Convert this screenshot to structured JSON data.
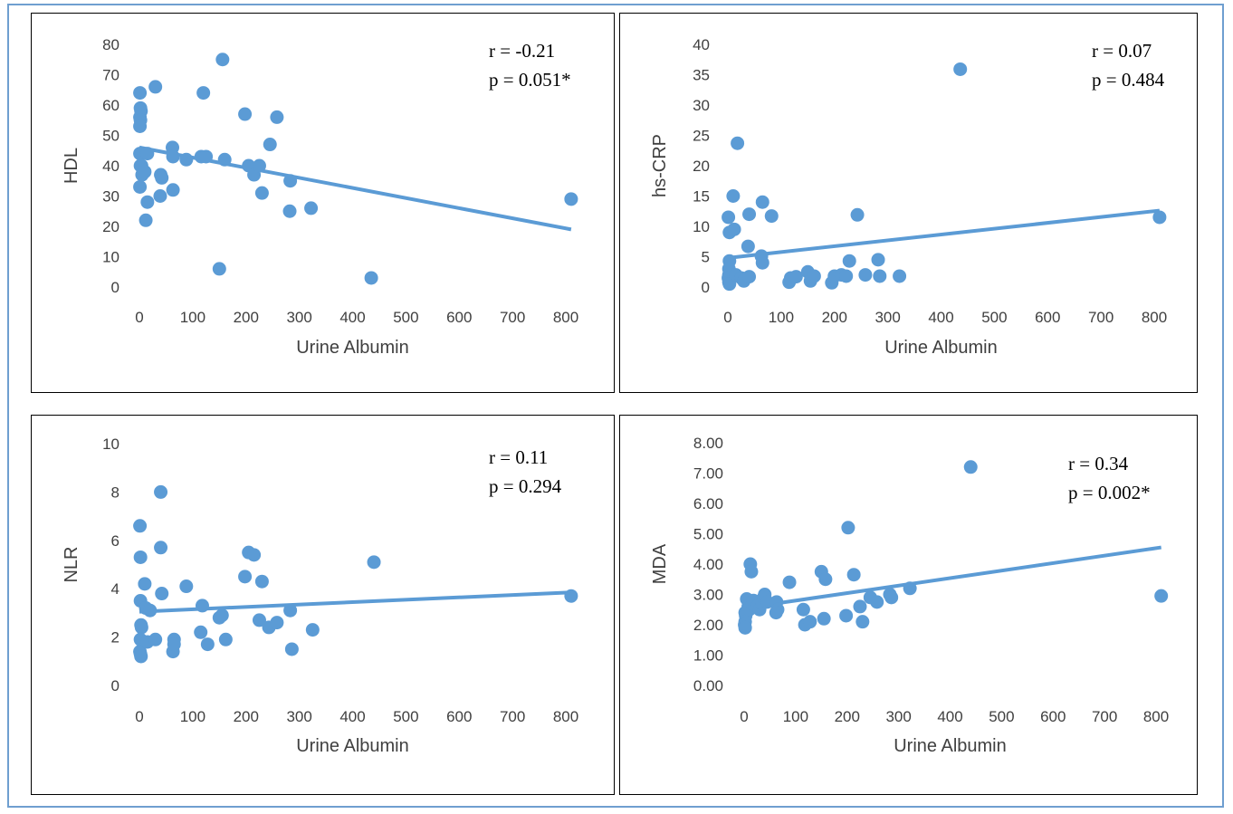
{
  "colors": {
    "point": "#5b9bd5",
    "trend": "#5b9bd5",
    "border": "#6f9fd0",
    "axis_text": "#404040"
  },
  "panels": [
    {
      "r_label": "r = -0.21",
      "p_label": "p = 0.051*"
    },
    {
      "r_label": "r = 0.07",
      "p_label": "p = 0.484"
    },
    {
      "r_label": "r = 0.11",
      "p_label": "p = 0.294"
    },
    {
      "r_label": "r = 0.34",
      "p_label": "p = 0.002*"
    }
  ],
  "chart_data": [
    {
      "type": "scatter",
      "xlabel": "Urine Albumin",
      "ylabel": "HDL",
      "xlim": [
        0,
        800
      ],
      "ylim": [
        0,
        80
      ],
      "xticks": [
        0,
        100,
        200,
        300,
        400,
        500,
        600,
        700,
        800
      ],
      "yticks": [
        0,
        10,
        20,
        30,
        40,
        50,
        60,
        70,
        80
      ],
      "ytick_labels": [
        "0",
        "10",
        "20",
        "30",
        "40",
        "50",
        "60",
        "70",
        "80"
      ],
      "trendline": {
        "x": [
          0,
          810
        ],
        "y": [
          46,
          19
        ]
      },
      "points": [
        [
          1,
          64
        ],
        [
          2,
          59
        ],
        [
          3,
          58
        ],
        [
          1,
          56
        ],
        [
          2,
          55
        ],
        [
          1,
          53
        ],
        [
          1,
          44
        ],
        [
          3,
          44
        ],
        [
          15,
          44
        ],
        [
          62,
          46
        ],
        [
          63,
          43
        ],
        [
          2,
          40
        ],
        [
          4,
          40
        ],
        [
          5,
          37
        ],
        [
          10,
          38
        ],
        [
          40,
          37
        ],
        [
          42,
          36
        ],
        [
          1,
          33
        ],
        [
          15,
          28
        ],
        [
          39,
          30
        ],
        [
          63,
          32
        ],
        [
          12,
          22
        ],
        [
          30,
          66
        ],
        [
          88,
          42
        ],
        [
          116,
          43
        ],
        [
          125,
          43
        ],
        [
          120,
          64
        ],
        [
          156,
          75
        ],
        [
          160,
          42
        ],
        [
          198,
          57
        ],
        [
          205,
          40
        ],
        [
          215,
          37
        ],
        [
          225,
          40
        ],
        [
          245,
          47
        ],
        [
          258,
          56
        ],
        [
          230,
          31
        ],
        [
          283,
          35
        ],
        [
          282,
          25
        ],
        [
          322,
          26
        ],
        [
          150,
          6
        ],
        [
          435,
          3
        ],
        [
          810,
          29
        ]
      ]
    },
    {
      "type": "scatter",
      "xlabel": "Urine Albumin",
      "ylabel": "hs-CRP",
      "xlim": [
        0,
        800
      ],
      "ylim": [
        0,
        40
      ],
      "xticks": [
        0,
        100,
        200,
        300,
        400,
        500,
        600,
        700,
        800
      ],
      "yticks": [
        0,
        5,
        10,
        15,
        20,
        25,
        30,
        35,
        40
      ],
      "ytick_labels": [
        "0",
        "5",
        "10",
        "15",
        "20",
        "25",
        "30",
        "35",
        "40"
      ],
      "trendline": {
        "x": [
          0,
          810
        ],
        "y": [
          4.8,
          12.6
        ]
      },
      "points": [
        [
          1,
          11.5
        ],
        [
          3,
          9
        ],
        [
          12,
          9.5
        ],
        [
          10,
          15
        ],
        [
          18,
          23.7
        ],
        [
          3,
          4.3
        ],
        [
          2,
          3
        ],
        [
          2,
          2
        ],
        [
          1,
          1.5
        ],
        [
          2,
          0.8
        ],
        [
          3,
          0.5
        ],
        [
          15,
          2
        ],
        [
          25,
          1.5
        ],
        [
          30,
          1
        ],
        [
          40,
          1.7
        ],
        [
          38,
          6.7
        ],
        [
          40,
          12
        ],
        [
          65,
          14
        ],
        [
          82,
          11.7
        ],
        [
          63,
          5.1
        ],
        [
          65,
          4
        ],
        [
          118,
          1.5
        ],
        [
          115,
          0.8
        ],
        [
          128,
          1.7
        ],
        [
          150,
          2.5
        ],
        [
          155,
          1
        ],
        [
          162,
          1.8
        ],
        [
          195,
          0.7
        ],
        [
          200,
          1.8
        ],
        [
          213,
          2
        ],
        [
          222,
          1.8
        ],
        [
          228,
          4.3
        ],
        [
          243,
          11.9
        ],
        [
          258,
          2
        ],
        [
          282,
          4.5
        ],
        [
          285,
          1.8
        ],
        [
          322,
          1.8
        ],
        [
          436,
          35.9
        ],
        [
          810,
          11.5
        ]
      ]
    },
    {
      "type": "scatter",
      "xlabel": "Urine Albumin",
      "ylabel": "NLR",
      "xlim": [
        0,
        800
      ],
      "ylim": [
        0,
        10
      ],
      "xticks": [
        0,
        100,
        200,
        300,
        400,
        500,
        600,
        700,
        800
      ],
      "yticks": [
        0,
        2,
        4,
        6,
        8,
        10
      ],
      "ytick_labels": [
        "0",
        "2",
        "4",
        "6",
        "8",
        "10"
      ],
      "trendline": {
        "x": [
          0,
          810
        ],
        "y": [
          3.05,
          3.85
        ]
      },
      "points": [
        [
          1,
          6.6
        ],
        [
          2,
          5.3
        ],
        [
          2,
          3.5
        ],
        [
          3,
          2.5
        ],
        [
          4,
          2.4
        ],
        [
          2,
          1.9
        ],
        [
          1,
          1.4
        ],
        [
          2,
          1.3
        ],
        [
          3,
          1.2
        ],
        [
          10,
          4.2
        ],
        [
          12,
          3.2
        ],
        [
          20,
          3.1
        ],
        [
          15,
          1.8
        ],
        [
          30,
          1.9
        ],
        [
          40,
          8
        ],
        [
          40,
          5.7
        ],
        [
          42,
          3.8
        ],
        [
          63,
          1.4
        ],
        [
          65,
          1.9
        ],
        [
          65,
          1.7
        ],
        [
          88,
          4.1
        ],
        [
          118,
          3.3
        ],
        [
          115,
          2.2
        ],
        [
          128,
          1.7
        ],
        [
          150,
          2.8
        ],
        [
          155,
          2.9
        ],
        [
          162,
          1.9
        ],
        [
          198,
          4.5
        ],
        [
          205,
          5.5
        ],
        [
          215,
          5.4
        ],
        [
          225,
          2.7
        ],
        [
          230,
          4.3
        ],
        [
          243,
          2.4
        ],
        [
          258,
          2.6
        ],
        [
          283,
          3.1
        ],
        [
          286,
          1.5
        ],
        [
          325,
          2.3
        ],
        [
          440,
          5.1
        ],
        [
          810,
          3.7
        ]
      ]
    },
    {
      "type": "scatter",
      "xlabel": "Urine Albumin",
      "ylabel": "MDA",
      "xlim": [
        0,
        800
      ],
      "ylim": [
        0,
        8
      ],
      "xticks": [
        0,
        100,
        200,
        300,
        400,
        500,
        600,
        700,
        800
      ],
      "yticks": [
        0,
        1,
        2,
        3,
        4,
        5,
        6,
        7,
        8
      ],
      "ytick_labels": [
        "0.00",
        "1.00",
        "2.00",
        "3.00",
        "4.00",
        "5.00",
        "6.00",
        "7.00",
        "8.00"
      ],
      "trendline": {
        "x": [
          0,
          810
        ],
        "y": [
          2.55,
          4.55
        ]
      },
      "points": [
        [
          2,
          2.4
        ],
        [
          3,
          2.3
        ],
        [
          2,
          2.1
        ],
        [
          1,
          2
        ],
        [
          2,
          1.9
        ],
        [
          5,
          2.85
        ],
        [
          8,
          2.6
        ],
        [
          10,
          2.5
        ],
        [
          12,
          4
        ],
        [
          14,
          3.75
        ],
        [
          15,
          2.7
        ],
        [
          18,
          2.8
        ],
        [
          25,
          2.6
        ],
        [
          30,
          2.5
        ],
        [
          35,
          2.7
        ],
        [
          38,
          2.9
        ],
        [
          40,
          3
        ],
        [
          45,
          2.75
        ],
        [
          63,
          2.75
        ],
        [
          65,
          2.5
        ],
        [
          62,
          2.4
        ],
        [
          88,
          3.4
        ],
        [
          115,
          2.5
        ],
        [
          118,
          2
        ],
        [
          128,
          2.1
        ],
        [
          150,
          3.75
        ],
        [
          158,
          3.5
        ],
        [
          155,
          2.2
        ],
        [
          198,
          2.3
        ],
        [
          202,
          5.2
        ],
        [
          213,
          3.65
        ],
        [
          225,
          2.6
        ],
        [
          230,
          2.1
        ],
        [
          245,
          2.9
        ],
        [
          258,
          2.75
        ],
        [
          283,
          3
        ],
        [
          286,
          2.9
        ],
        [
          322,
          3.2
        ],
        [
          440,
          7.2
        ],
        [
          810,
          2.95
        ]
      ]
    }
  ]
}
